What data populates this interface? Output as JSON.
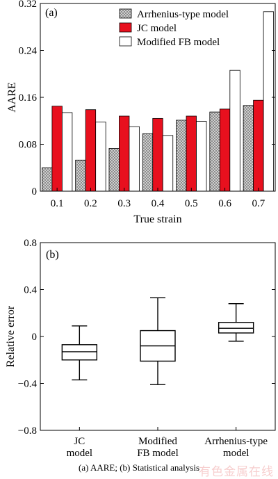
{
  "figure_caption": "(a) AARE; (b) Statistical analysis",
  "watermark_text": "有色金属在线",
  "colors": {
    "arrhenius_fill": "#9a9a9a",
    "jc_fill": "#e8101e",
    "fb_fill": "#ffffff",
    "outline": "#000000",
    "watermark": "#f6c6c6"
  },
  "chart_data": [
    {
      "type": "bar",
      "panel_label": "(a)",
      "xlabel": "True strain",
      "ylabel": "AARE",
      "ylim": [
        0,
        0.32
      ],
      "yticks": [
        "0",
        "0.08",
        "0.16",
        "0.24",
        "0.32"
      ],
      "categories": [
        "0.1",
        "0.2",
        "0.3",
        "0.4",
        "0.5",
        "0.6",
        "0.7"
      ],
      "legend_position": "top-right",
      "series": [
        {
          "name": "Arrhenius-type model",
          "pattern": "hatched-grey",
          "values": [
            0.04,
            0.053,
            0.073,
            0.098,
            0.121,
            0.135,
            0.146
          ]
        },
        {
          "name": "JC model",
          "pattern": "solid-red",
          "values": [
            0.145,
            0.139,
            0.128,
            0.124,
            0.128,
            0.14,
            0.155
          ]
        },
        {
          "name": "Modified FB model",
          "pattern": "white",
          "values": [
            0.134,
            0.118,
            0.11,
            0.095,
            0.119,
            0.206,
            0.306
          ]
        }
      ]
    },
    {
      "type": "boxplot",
      "panel_label": "(b)",
      "xlabel": "",
      "ylabel": "Relative error",
      "ylim": [
        -0.8,
        0.8
      ],
      "yticks": [
        "−0.8",
        "−0.4",
        "0",
        "0.4",
        "0.8"
      ],
      "categories": [
        {
          "lines": [
            "JC",
            "model"
          ]
        },
        {
          "lines": [
            "Modified",
            "FB model"
          ]
        },
        {
          "lines": [
            "Arrhenius-type",
            "model"
          ]
        }
      ],
      "boxes": [
        {
          "whisker_low": -0.37,
          "q1": -0.2,
          "median": -0.13,
          "q3": -0.07,
          "whisker_high": 0.09
        },
        {
          "whisker_low": -0.41,
          "q1": -0.21,
          "median": -0.08,
          "q3": 0.05,
          "whisker_high": 0.33
        },
        {
          "whisker_low": -0.04,
          "q1": 0.03,
          "median": 0.07,
          "q3": 0.12,
          "whisker_high": 0.28
        }
      ]
    }
  ]
}
